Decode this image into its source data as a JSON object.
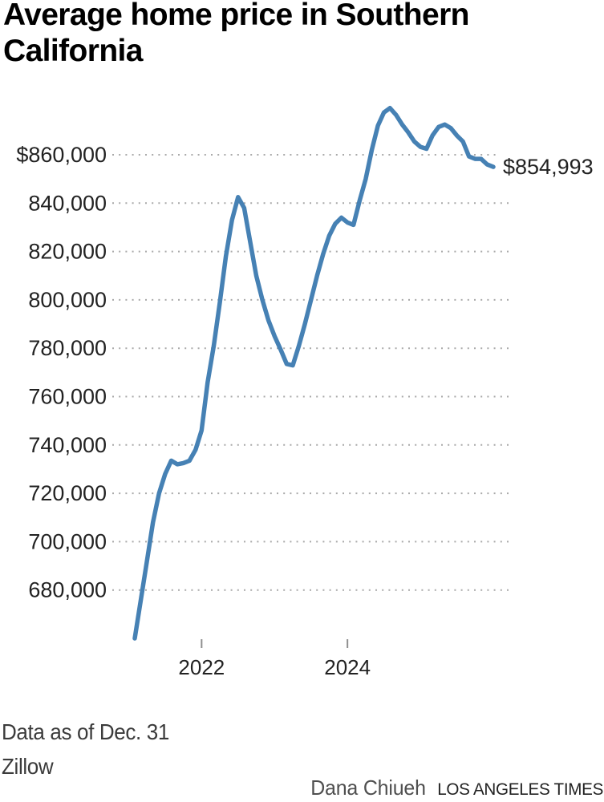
{
  "header": {
    "title": "Average home price in Southern\nCalifornia"
  },
  "chart_data": {
    "type": "line",
    "title": "Average home price in Southern California",
    "x_unit": "month",
    "x": [
      "2021-01",
      "2021-02",
      "2021-03",
      "2021-04",
      "2021-05",
      "2021-06",
      "2021-07",
      "2021-08",
      "2021-09",
      "2021-10",
      "2021-11",
      "2021-12",
      "2022-01",
      "2022-02",
      "2022-03",
      "2022-04",
      "2022-05",
      "2022-06",
      "2022-07",
      "2022-08",
      "2022-09",
      "2022-10",
      "2022-11",
      "2022-12",
      "2023-01",
      "2023-02",
      "2023-03",
      "2023-04",
      "2023-05",
      "2023-06",
      "2023-07",
      "2023-08",
      "2023-09",
      "2023-10",
      "2023-11",
      "2023-12",
      "2024-01",
      "2024-02",
      "2024-03",
      "2024-04",
      "2024-05",
      "2024-06",
      "2024-07",
      "2024-08",
      "2024-09",
      "2024-10",
      "2024-11",
      "2024-12",
      "2025-01",
      "2025-02",
      "2025-03",
      "2025-04",
      "2025-05",
      "2025-06",
      "2025-07",
      "2025-08",
      "2025-09",
      "2025-10",
      "2025-11",
      "2025-12"
    ],
    "values": [
      660000,
      676000,
      692000,
      708000,
      720000,
      728000,
      733500,
      732000,
      732500,
      733500,
      738000,
      746000,
      766000,
      781000,
      799000,
      818000,
      833000,
      842500,
      838000,
      824000,
      810000,
      800000,
      791500,
      785000,
      779500,
      773500,
      772900,
      781000,
      790000,
      800000,
      810000,
      819000,
      826500,
      831500,
      834000,
      832000,
      831000,
      841000,
      850000,
      862000,
      872000,
      877500,
      879300,
      876500,
      872500,
      869300,
      865500,
      863300,
      862500,
      868000,
      871500,
      872500,
      871000,
      868000,
      865500,
      859300,
      858300,
      858300,
      856000,
      854993
    ],
    "yticks": [
      {
        "value": 860000,
        "label": "$860,000"
      },
      {
        "value": 840000,
        "label": "840,000"
      },
      {
        "value": 820000,
        "label": "820,000"
      },
      {
        "value": 800000,
        "label": "800,000"
      },
      {
        "value": 780000,
        "label": "780,000"
      },
      {
        "value": 760000,
        "label": "760,000"
      },
      {
        "value": 740000,
        "label": "740,000"
      },
      {
        "value": 720000,
        "label": "720,000"
      },
      {
        "value": 700000,
        "label": "700,000"
      },
      {
        "value": 680000,
        "label": "680,000"
      }
    ],
    "xticks": [
      {
        "label": "2022",
        "at_month": "2021-12"
      },
      {
        "label": "2024",
        "at_month": "2023-12"
      }
    ],
    "ylim": [
      655000,
      885000
    ],
    "grid": "horizontal-dotted",
    "legend": "none",
    "end_label": "$854,993",
    "last_value": 854993,
    "line_color": "#4681b4",
    "grid_color": "#a9a9a9",
    "tick_color": "#8f8f8f",
    "label_color": "#222222"
  },
  "footer": {
    "note": "Data as of Dec. 31",
    "source": "Zillow",
    "byline": "Dana Chiueh",
    "publication": "LOS ANGELES TIMES"
  }
}
